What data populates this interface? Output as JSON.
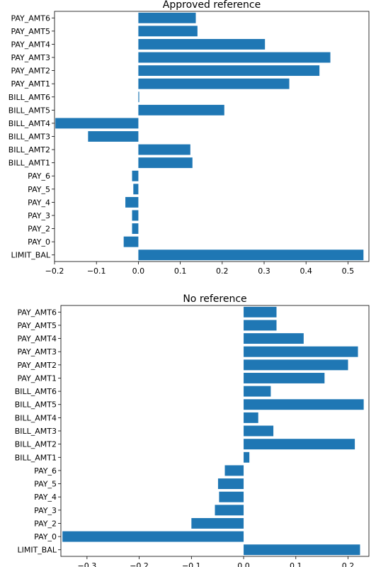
{
  "chart_data": [
    {
      "type": "bar",
      "orientation": "horizontal",
      "title": "Approved reference",
      "xlabel": "",
      "ylabel": "",
      "xlim": [
        -0.2,
        0.55
      ],
      "xticks": [
        -0.2,
        -0.1,
        0.0,
        0.1,
        0.2,
        0.3,
        0.4,
        0.5
      ],
      "xtick_labels": [
        "−0.2",
        "−0.1",
        "0.0",
        "0.1",
        "0.2",
        "0.3",
        "0.4",
        "0.5"
      ],
      "grid": false,
      "color": "#1f77b4",
      "categories": [
        "LIMIT_BAL",
        "PAY_0",
        "PAY_2",
        "PAY_3",
        "PAY_4",
        "PAY_5",
        "PAY_6",
        "BILL_AMT1",
        "BILL_AMT2",
        "BILL_AMT3",
        "BILL_AMT4",
        "BILL_AMT5",
        "BILL_AMT6",
        "PAY_AMT1",
        "PAY_AMT2",
        "PAY_AMT3",
        "PAY_AMT4",
        "PAY_AMT5",
        "PAY_AMT6"
      ],
      "values": [
        0.537,
        -0.035,
        -0.015,
        -0.015,
        -0.031,
        -0.012,
        -0.015,
        0.129,
        0.124,
        -0.12,
        -0.198,
        0.205,
        0.002,
        0.36,
        0.432,
        0.458,
        0.302,
        0.141,
        0.137
      ]
    },
    {
      "type": "bar",
      "orientation": "horizontal",
      "title": "No reference",
      "xlabel": "",
      "ylabel": "",
      "xlim": [
        -0.35,
        0.24
      ],
      "xticks": [
        -0.3,
        -0.2,
        -0.1,
        0.0,
        0.1,
        0.2
      ],
      "xtick_labels": [
        "−0.3",
        "−0.2",
        "−0.1",
        "0.0",
        "0.1",
        "0.2"
      ],
      "grid": false,
      "color": "#1f77b4",
      "categories": [
        "LIMIT_BAL",
        "PAY_0",
        "PAY_2",
        "PAY_3",
        "PAY_4",
        "PAY_5",
        "PAY_6",
        "BILL_AMT1",
        "BILL_AMT2",
        "BILL_AMT3",
        "BILL_AMT4",
        "BILL_AMT5",
        "BILL_AMT6",
        "PAY_AMT1",
        "PAY_AMT2",
        "PAY_AMT3",
        "PAY_AMT4",
        "PAY_AMT5",
        "PAY_AMT6"
      ],
      "values": [
        0.223,
        -0.347,
        -0.1,
        -0.055,
        -0.047,
        -0.049,
        -0.036,
        0.011,
        0.213,
        0.057,
        0.028,
        0.23,
        0.052,
        0.155,
        0.2,
        0.219,
        0.115,
        0.063,
        0.063
      ]
    }
  ]
}
